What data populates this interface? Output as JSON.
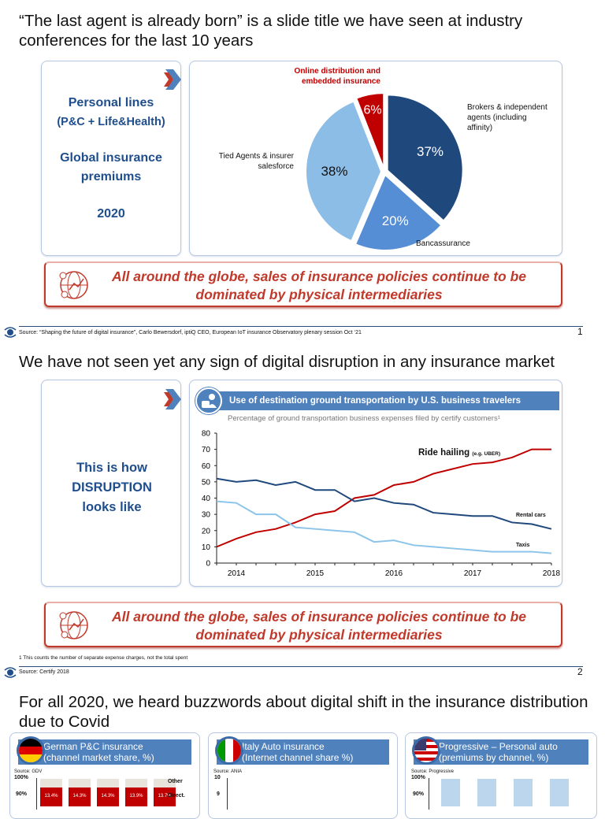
{
  "slide1": {
    "title": "“The last agent is already born” is a slide title we have seen at industry conferences for the last 10 years",
    "left": {
      "line1": "Personal lines",
      "line2": "(P&C + Life&Health)",
      "line3": "Global insurance premiums",
      "line4": "2020"
    },
    "pie_labels": {
      "online": "Online distribution and embedded insurance",
      "brokers": "Brokers & independent agents (including affinity)",
      "tied": "Tied Agents & insurer salesforce",
      "banc": "Bancassurance"
    },
    "banner": "All around the globe, sales of insurance policies continue to be dominated by physical intermediaries",
    "source": "Source: “Shaping the future of digital insurance”, Carlo Bewersdorf, iptiQ CEO, European IoT insurance Observatory plenary session Oct ‘21",
    "page": "1"
  },
  "slide2": {
    "title": "We have not seen yet any sign of digital disruption in any insurance market",
    "left": "This is how DISRUPTION looks like",
    "chart_title": "Use of destination ground transportation by U.S. business travelers",
    "chart_subtitle": "Percentage of ground transportation business expenses filed by certify customers¹",
    "ride_label": "Ride hailing",
    "ride_sub": "(e.g. UBER)",
    "banner": "All around the globe, sales of insurance policies continue to be dominated by physical intermediaries",
    "footnote": "1 This counts the number of separate expense charges, not the total spent",
    "source": "Source: Certify 2018",
    "page": "2"
  },
  "slide3": {
    "title": "For all 2020, we heard buzzwords about digital shift in the insurance distribution due to Covid",
    "panels": [
      {
        "title": "German P&C insurance",
        "sub": "(channel market share, %)",
        "source": "Source: GDV",
        "y_top": "100%",
        "y_next": "90%",
        "legend": [
          "Other",
          "Direct."
        ],
        "bar_labels": [
          "13.4%",
          "14.3%",
          "14.3%",
          "13.9%",
          "13.7%"
        ],
        "flag": "germany"
      },
      {
        "title": "Italy Auto insurance",
        "sub": "(Internet channel share %)",
        "source": "Source: ANIA",
        "y_top": "10",
        "y_next": "9",
        "flag": "italy"
      },
      {
        "title": "Progressive – Personal auto",
        "sub": "(premiums by channel, %)",
        "source": "Source: Progressive",
        "y_top": "100%",
        "y_next": "90%",
        "flag": "usa"
      }
    ]
  },
  "colors": {
    "navy": "#1f497d",
    "mid_blue": "#558ed5",
    "light_blue": "#8cbde6",
    "red": "#c00000",
    "banner_red": "#c0392b"
  },
  "chart_data": [
    {
      "type": "pie",
      "slices": [
        {
          "name": "Brokers & independent agents (including affinity)",
          "value": 37,
          "label": "37%",
          "color": "#1f497d"
        },
        {
          "name": "Bancassurance",
          "value": 20,
          "label": "20%",
          "color": "#558ed5"
        },
        {
          "name": "Tied Agents & insurer salesforce",
          "value": 38,
          "label": "38%",
          "color": "#8cbde6"
        },
        {
          "name": "Online distribution and embedded insurance",
          "value": 6,
          "label": "6%",
          "color": "#c00000"
        }
      ]
    },
    {
      "type": "line",
      "ylim": [
        0,
        80
      ],
      "yticks": [
        0,
        10,
        20,
        30,
        40,
        50,
        60,
        70,
        80
      ],
      "xlim": [
        2013.75,
        2018
      ],
      "xticks": [
        2014,
        2015,
        2016,
        2017,
        2018
      ],
      "grid": false,
      "x": [
        2013.75,
        2014,
        2014.25,
        2014.5,
        2014.75,
        2015,
        2015.25,
        2015.5,
        2015.75,
        2016,
        2016.25,
        2016.5,
        2016.75,
        2017,
        2017.25,
        2017.5,
        2017.75,
        2018
      ],
      "series": [
        {
          "name": "Ride hailing",
          "color": "#c00000",
          "values": [
            10,
            15,
            19,
            21,
            25,
            30,
            32,
            40,
            42,
            48,
            50,
            55,
            58,
            61,
            62,
            65,
            70,
            70
          ]
        },
        {
          "name": "Rental cars",
          "color": "#1f497d",
          "values": [
            52,
            50,
            51,
            48,
            50,
            45,
            45,
            38,
            40,
            37,
            36,
            31,
            30,
            29,
            29,
            25,
            24,
            21
          ]
        },
        {
          "name": "Taxis",
          "color": "#8cc4ea",
          "values": [
            38,
            37,
            30,
            30,
            22,
            21,
            20,
            19,
            13,
            14,
            11,
            10,
            9,
            8,
            7,
            7,
            7,
            6
          ]
        }
      ]
    }
  ]
}
